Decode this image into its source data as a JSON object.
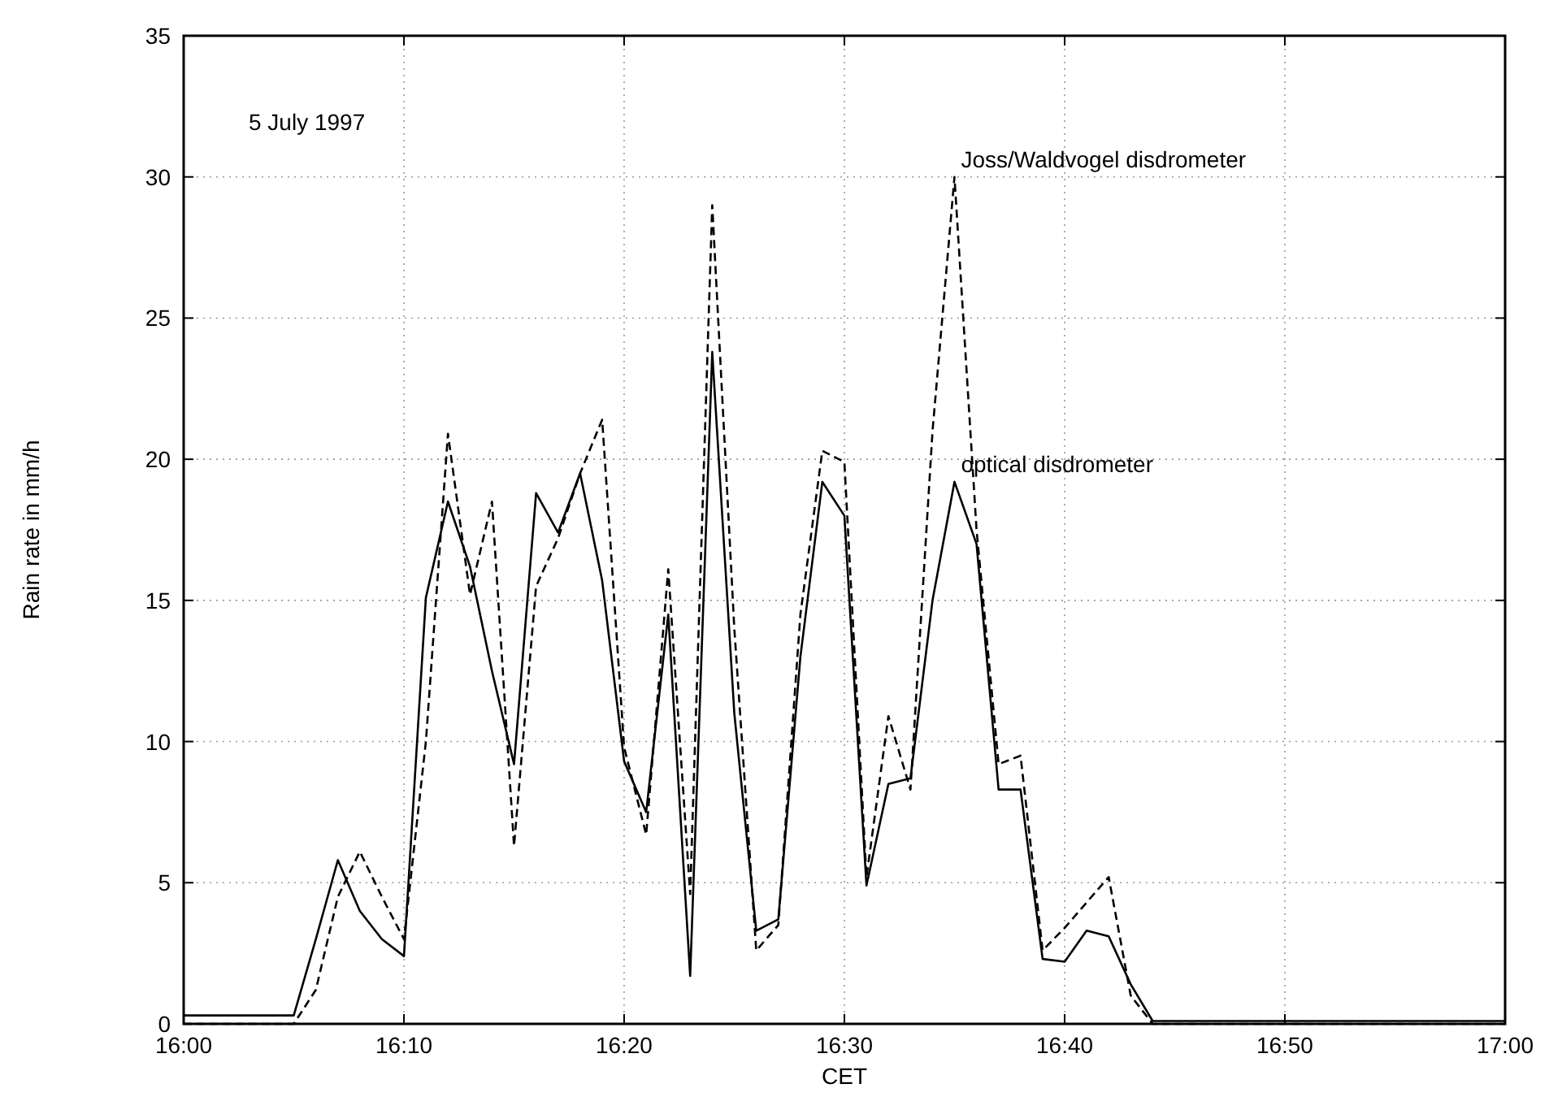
{
  "chart_data": {
    "type": "line",
    "xlabel": "CET",
    "ylabel": "Rain rate in mm/h",
    "annotations": [
      "5 July 1997"
    ],
    "x": [
      16,
      16.0833,
      16.1,
      16.1167,
      16.1333,
      16.15,
      16.1667,
      16.1833,
      16.2,
      16.2167,
      16.2333,
      16.25,
      16.2667,
      16.2833,
      16.3,
      16.3167,
      16.3333,
      16.35,
      16.3667,
      16.3833,
      16.4,
      16.4167,
      16.4333,
      16.45,
      16.4667,
      16.4833,
      16.5,
      16.5167,
      16.5333,
      16.55,
      16.5667,
      16.5833,
      16.6,
      16.6167,
      16.6333,
      16.65,
      16.6667,
      16.6833,
      16.7,
      16.7167,
      16.7333,
      17
    ],
    "series": [
      {
        "name": "Joss/Waldvogel disdrometer",
        "color": "#000000",
        "line_style": "dashed",
        "values": [
          0,
          0,
          1.2,
          4.5,
          6.1,
          4.5,
          3,
          10,
          20.9,
          15.2,
          18.5,
          6.3,
          15.5,
          17.2,
          19.5,
          21.4,
          9.8,
          6.7,
          16.1,
          4.6,
          29,
          14,
          2.6,
          3.5,
          14.5,
          20.3,
          19.9,
          5.2,
          10.9,
          8.3,
          21,
          30,
          17.5,
          9.2,
          9.5,
          2.6,
          3.4,
          4.3,
          5.2,
          1,
          0,
          0
        ]
      },
      {
        "name": "optical disdrometer",
        "color": "#000000",
        "line_style": "solid",
        "values": [
          0.3,
          0.3,
          3,
          5.8,
          4,
          3,
          2.4,
          15.1,
          18.5,
          16.2,
          12.5,
          9.2,
          18.8,
          17.4,
          19.5,
          15.7,
          9.3,
          7.5,
          14.5,
          1.7,
          23.8,
          11,
          3.3,
          3.7,
          13,
          19.2,
          18,
          4.9,
          8.5,
          8.7,
          15,
          19.2,
          17,
          8.3,
          8.3,
          2.3,
          2.2,
          3.3,
          3.1,
          1.4,
          0.1,
          0.1
        ]
      }
    ],
    "xlim": [
      16,
      17
    ],
    "xticks": [
      {
        "value": 16,
        "label": "16:00"
      },
      {
        "value": 16.1667,
        "label": "16:10"
      },
      {
        "value": 16.3333,
        "label": "16:20"
      },
      {
        "value": 16.5,
        "label": "16:30"
      },
      {
        "value": 16.6667,
        "label": "16:40"
      },
      {
        "value": 16.8333,
        "label": "16:50"
      },
      {
        "value": 17,
        "label": "17:00"
      }
    ],
    "ylim": [
      0,
      35
    ],
    "yticks": [
      0,
      5,
      10,
      15,
      20,
      25,
      30,
      35
    ],
    "grid": true
  }
}
